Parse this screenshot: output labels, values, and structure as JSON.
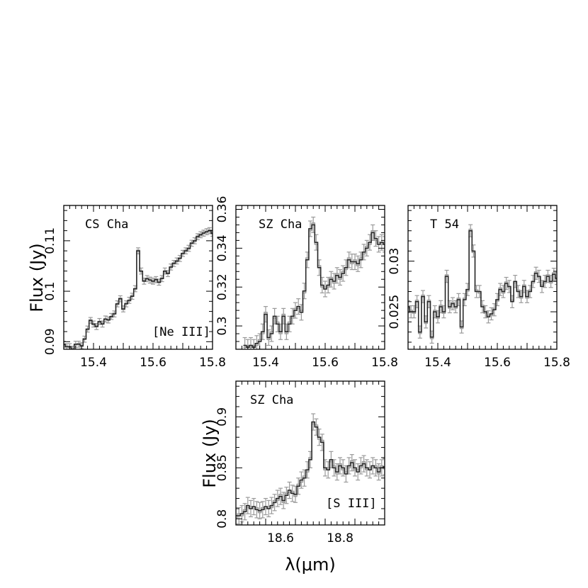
{
  "figure": {
    "ylabel": "Flux (Jy)",
    "xlabel": "λ(μm)"
  },
  "chart_data": [
    {
      "type": "line",
      "title": "CS Cha",
      "annotation": "[Ne III]",
      "xlim": [
        15.3,
        15.8
      ],
      "ylim": [
        0.0885,
        0.117
      ],
      "xticks": [
        "15.4",
        "15.6",
        "15.8"
      ],
      "yticks": [
        "0.09",
        "0.1",
        "0.11"
      ],
      "series": [
        {
          "x": [
            15.3,
            15.31,
            15.32,
            15.33,
            15.34,
            15.35,
            15.36,
            15.37,
            15.38,
            15.39,
            15.4,
            15.41,
            15.42,
            15.43,
            15.44,
            15.45,
            15.46,
            15.47,
            15.48,
            15.49,
            15.5,
            15.51,
            15.52,
            15.53,
            15.54,
            15.55,
            15.56,
            15.57,
            15.58,
            15.59,
            15.6,
            15.61,
            15.62,
            15.63,
            15.64,
            15.65,
            15.66,
            15.67,
            15.68,
            15.69,
            15.7,
            15.71,
            15.72,
            15.73,
            15.74,
            15.75,
            15.76,
            15.77,
            15.78,
            15.79,
            15.8
          ],
          "y": [
            0.0895,
            0.089,
            0.089,
            0.0885,
            0.0895,
            0.0895,
            0.0892,
            0.0905,
            0.0925,
            0.0942,
            0.0935,
            0.093,
            0.094,
            0.0935,
            0.0945,
            0.0943,
            0.095,
            0.0955,
            0.0975,
            0.0985,
            0.0965,
            0.0975,
            0.0982,
            0.099,
            0.1005,
            0.108,
            0.104,
            0.102,
            0.1025,
            0.1022,
            0.102,
            0.1023,
            0.1018,
            0.1025,
            0.104,
            0.1035,
            0.1048,
            0.1055,
            0.106,
            0.1065,
            0.1075,
            0.108,
            0.1085,
            0.1095,
            0.11,
            0.1108,
            0.1112,
            0.1115,
            0.1118,
            0.112,
            0.1115
          ],
          "err": 0.0006
        }
      ]
    },
    {
      "type": "line",
      "title": "SZ Cha",
      "annotation": "",
      "xlim": [
        15.3,
        15.8
      ],
      "ylim": [
        0.288,
        0.362
      ],
      "xticks": [
        "15.4",
        "15.6",
        "15.8"
      ],
      "yticks": [
        "0.3",
        "0.32",
        "0.34",
        "0.36"
      ],
      "series": [
        {
          "x": [
            15.33,
            15.34,
            15.35,
            15.36,
            15.37,
            15.38,
            15.39,
            15.4,
            15.41,
            15.42,
            15.43,
            15.44,
            15.45,
            15.46,
            15.47,
            15.48,
            15.49,
            15.5,
            15.51,
            15.52,
            15.53,
            15.54,
            15.55,
            15.56,
            15.57,
            15.58,
            15.59,
            15.6,
            15.61,
            15.62,
            15.63,
            15.64,
            15.65,
            15.66,
            15.67,
            15.68,
            15.69,
            15.7,
            15.71,
            15.72,
            15.73,
            15.74,
            15.75,
            15.76,
            15.77,
            15.78,
            15.79,
            15.8
          ],
          "y": [
            0.29,
            0.289,
            0.29,
            0.289,
            0.291,
            0.292,
            0.297,
            0.306,
            0.294,
            0.296,
            0.305,
            0.301,
            0.297,
            0.305,
            0.297,
            0.301,
            0.305,
            0.308,
            0.31,
            0.307,
            0.318,
            0.334,
            0.35,
            0.352,
            0.343,
            0.33,
            0.321,
            0.319,
            0.321,
            0.324,
            0.323,
            0.326,
            0.325,
            0.327,
            0.33,
            0.334,
            0.333,
            0.333,
            0.332,
            0.334,
            0.338,
            0.34,
            0.343,
            0.348,
            0.345,
            0.342,
            0.343,
            0.342
          ],
          "err": 0.004
        }
      ]
    },
    {
      "type": "line",
      "title": "T 54",
      "annotation": "",
      "xlim": [
        15.3,
        15.8
      ],
      "ylim": [
        0.0213,
        0.0355
      ],
      "xticks": [
        "15.4",
        "15.6",
        "15.8"
      ],
      "yticks": [
        "0.025",
        "0.03"
      ],
      "series": [
        {
          "x": [
            15.3,
            15.31,
            15.32,
            15.33,
            15.34,
            15.35,
            15.36,
            15.37,
            15.38,
            15.39,
            15.4,
            15.41,
            15.42,
            15.43,
            15.44,
            15.45,
            15.46,
            15.47,
            15.48,
            15.49,
            15.5,
            15.51,
            15.52,
            15.53,
            15.54,
            15.55,
            15.56,
            15.57,
            15.58,
            15.59,
            15.6,
            15.61,
            15.62,
            15.63,
            15.64,
            15.65,
            15.66,
            15.67,
            15.68,
            15.69,
            15.7,
            15.71,
            15.72,
            15.73,
            15.74,
            15.75,
            15.76,
            15.77,
            15.78,
            15.79,
            15.8
          ],
          "y": [
            0.0255,
            0.025,
            0.025,
            0.026,
            0.023,
            0.0265,
            0.024,
            0.026,
            0.0225,
            0.025,
            0.0245,
            0.0255,
            0.025,
            0.0285,
            0.0255,
            0.0258,
            0.0255,
            0.0262,
            0.0235,
            0.0262,
            0.0272,
            0.033,
            0.031,
            0.027,
            0.027,
            0.0255,
            0.025,
            0.0245,
            0.0248,
            0.0252,
            0.0262,
            0.0272,
            0.027,
            0.0278,
            0.0275,
            0.026,
            0.028,
            0.027,
            0.0265,
            0.0275,
            0.0265,
            0.027,
            0.028,
            0.0288,
            0.0285,
            0.0275,
            0.028,
            0.0285,
            0.028,
            0.0287,
            0.0283
          ],
          "err": 0.0006
        }
      ]
    },
    {
      "type": "line",
      "title": "SZ Cha",
      "annotation": "[S III]",
      "xlim": [
        18.45,
        18.95
      ],
      "ylim": [
        0.794,
        0.935
      ],
      "xticks": [
        "18.6",
        "18.8"
      ],
      "yticks": [
        "0.8",
        "0.85",
        "0.9"
      ],
      "series": [
        {
          "x": [
            18.45,
            18.46,
            18.47,
            18.48,
            18.49,
            18.5,
            18.51,
            18.52,
            18.53,
            18.54,
            18.55,
            18.56,
            18.57,
            18.58,
            18.59,
            18.6,
            18.61,
            18.62,
            18.63,
            18.64,
            18.65,
            18.66,
            18.67,
            18.68,
            18.69,
            18.7,
            18.71,
            18.72,
            18.73,
            18.74,
            18.75,
            18.76,
            18.77,
            18.78,
            18.79,
            18.8,
            18.81,
            18.82,
            18.83,
            18.84,
            18.85,
            18.86,
            18.87,
            18.88,
            18.89,
            18.9,
            18.91,
            18.92,
            18.93,
            18.94,
            18.95
          ],
          "y": [
            0.803,
            0.803,
            0.805,
            0.807,
            0.813,
            0.81,
            0.812,
            0.809,
            0.808,
            0.809,
            0.812,
            0.81,
            0.813,
            0.816,
            0.82,
            0.822,
            0.818,
            0.823,
            0.828,
            0.825,
            0.824,
            0.832,
            0.838,
            0.84,
            0.848,
            0.858,
            0.895,
            0.89,
            0.88,
            0.875,
            0.85,
            0.848,
            0.858,
            0.85,
            0.846,
            0.852,
            0.85,
            0.844,
            0.852,
            0.855,
            0.85,
            0.846,
            0.852,
            0.854,
            0.85,
            0.848,
            0.852,
            0.85,
            0.846,
            0.85,
            0.851
          ],
          "err": 0.008
        }
      ]
    }
  ]
}
